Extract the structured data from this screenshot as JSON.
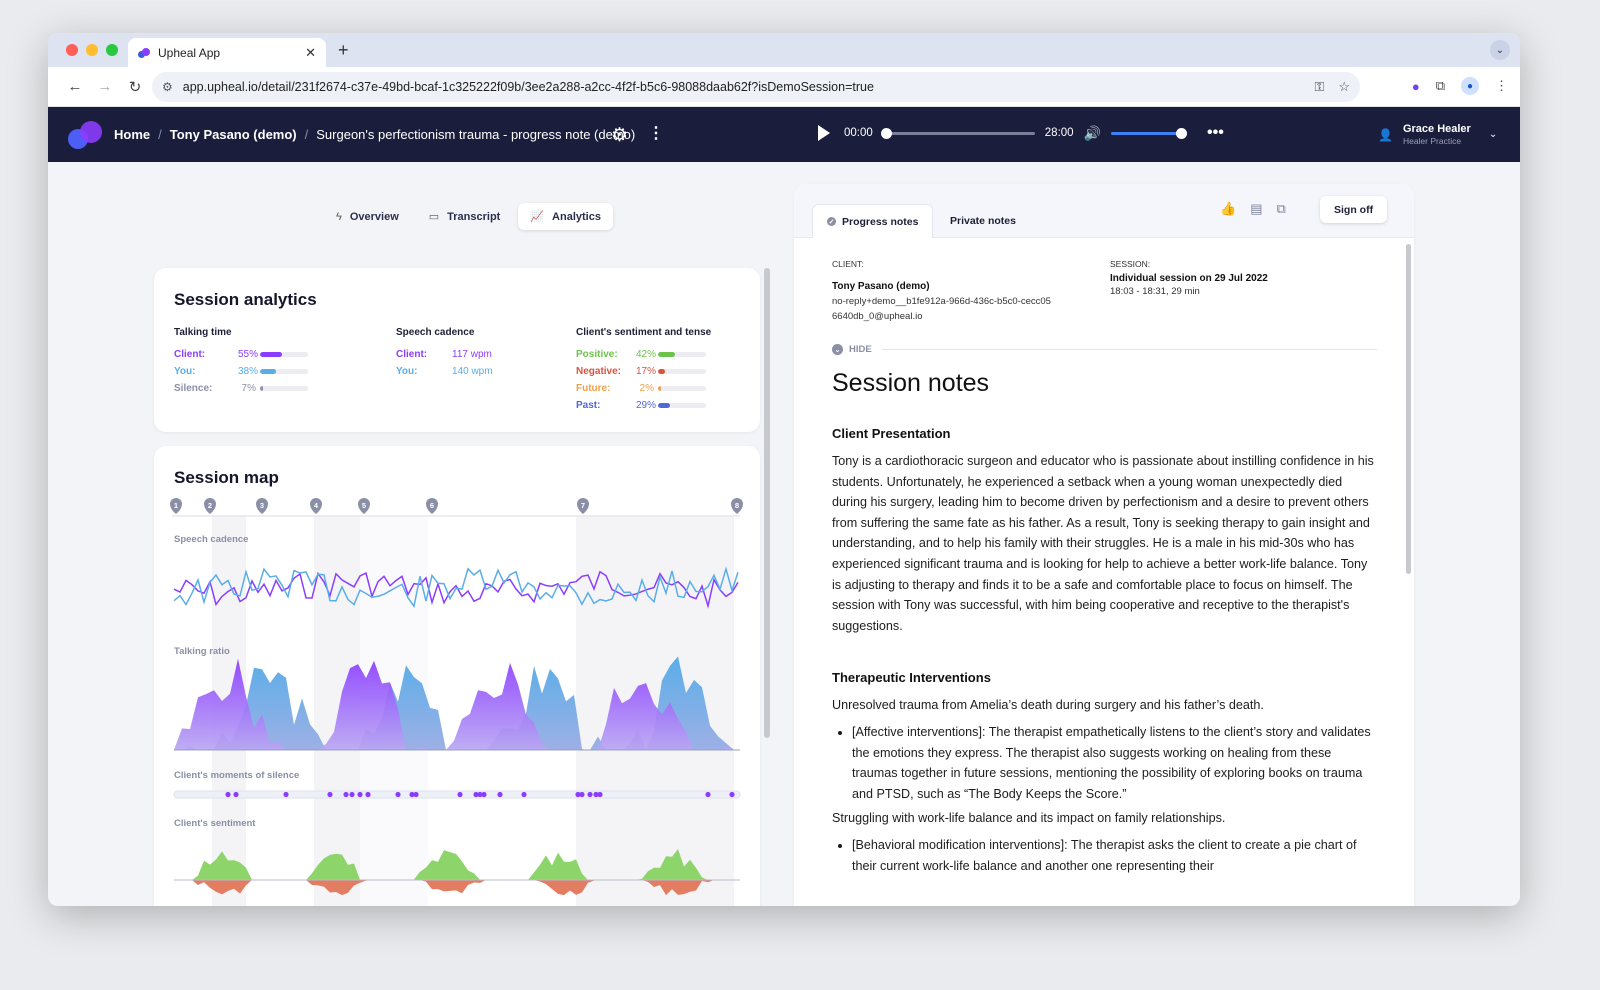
{
  "browser": {
    "tab_title": "Upheal App",
    "url": "app.upheal.io/detail/231f2674-c37e-49bd-bcaf-1c325222f09b/3ee2a288-a2cc-4f2f-b5c6-98088daab62f?isDemoSession=true"
  },
  "header": {
    "breadcrumbs": [
      "Home",
      "Tony Pasano (demo)",
      "Surgeon's perfectionism trauma - progress note (demo)"
    ],
    "player": {
      "current_time": "00:00",
      "duration": "28:00",
      "progress": 0,
      "volume": 1
    },
    "user": {
      "name": "Grace Healer",
      "practice": "Healer Practice"
    }
  },
  "view_tabs": [
    "Overview",
    "Transcript",
    "Analytics"
  ],
  "active_view_tab": "Analytics",
  "analytics": {
    "title": "Session analytics",
    "talking_time": {
      "label": "Talking time",
      "rows": [
        {
          "label": "Client:",
          "pct": "55%",
          "value": 55,
          "color": "#8b3dff"
        },
        {
          "label": "You:",
          "pct": "38%",
          "value": 38,
          "color": "#5aaee8"
        },
        {
          "label": "Silence:",
          "pct": "7%",
          "value": 7,
          "color": "#8a8fa6"
        }
      ]
    },
    "speech_cadence": {
      "label": "Speech cadence",
      "rows": [
        {
          "label": "Client:",
          "value": "117 wpm",
          "color": "#8b3dff"
        },
        {
          "label": "You:",
          "value": "140 wpm",
          "color": "#5aaee8"
        }
      ]
    },
    "sentiment": {
      "label": "Client's sentiment and tense",
      "rows": [
        {
          "label": "Positive:",
          "pct": "42%",
          "value": 42,
          "color": "#6cc24a"
        },
        {
          "label": "Negative:",
          "pct": "17%",
          "value": 17,
          "color": "#d8533d"
        },
        {
          "label": "Future:",
          "pct": "2%",
          "value": 2,
          "color": "#f0a04b"
        },
        {
          "label": "Past:",
          "pct": "29%",
          "value": 29,
          "color": "#5067d8"
        }
      ]
    }
  },
  "session_map": {
    "title": "Session map",
    "markers": [
      "1",
      "2",
      "3",
      "4",
      "5",
      "6",
      "7",
      "8"
    ],
    "tracks": [
      "Speech cadence",
      "Talking ratio",
      "Client's moments of silence",
      "Client's sentiment"
    ]
  },
  "notes": {
    "tabs": [
      "Progress notes",
      "Private notes"
    ],
    "sign_off": "Sign off",
    "client_label": "CLIENT:",
    "client_name": "Tony Pasano (demo)",
    "client_email": "no-reply+demo__b1fe912a-966d-436c-b5c0-cecc056640db_0@upheal.io",
    "session_label": "SESSION:",
    "session_name": "Individual session on 29 Jul 2022",
    "session_time": "18:03 - 18:31, 29 min",
    "hide": "HIDE",
    "title": "Session notes",
    "section1_title": "Client Presentation",
    "section1_text": "Tony is a cardiothoracic surgeon and educator who is passionate about instilling confidence in his students. Unfortunately, he experienced a setback when a young woman unexpectedly died during his surgery, leading him to become driven by perfectionism and a desire to prevent others from suffering the same fate as his father. As a result, Tony is seeking therapy to gain insight and understanding, and to help his family with their struggles. He is a male in his mid-30s who has experienced significant trauma and is looking for help to achieve a better work-life balance. Tony is adjusting to therapy and finds it to be a safe and comfortable place to focus on himself. The session with Tony was successful, with him being cooperative and receptive to the therapist's suggestions.",
    "section2_title": "Therapeutic Interventions",
    "section2_p1": "Unresolved trauma from Amelia’s death during surgery and his father’s death.",
    "section2_b1": "[Affective interventions]: The therapist empathetically listens to the client’s story and validates the emotions they express. The therapist also suggests working on healing from these traumas together in future sessions, mentioning the possibility of exploring books on trauma and PTSD, such as “The Body Keeps the Score.”",
    "section2_p2": "Struggling with work-life balance and its impact on family relationships.",
    "section2_b2": "[Behavioral modification interventions]: The therapist asks the client to create a pie chart of their current work-life balance and another one representing their"
  }
}
